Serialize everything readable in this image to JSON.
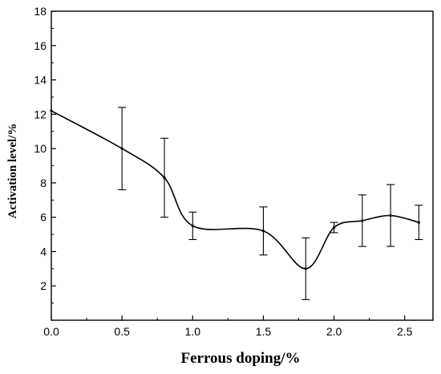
{
  "chart_data": {
    "type": "line",
    "title": "",
    "xlabel": "Ferrous doping/%",
    "ylabel": "Activation level/%",
    "xlim": [
      0,
      2.7
    ],
    "ylim": [
      0,
      18
    ],
    "x_ticks": [
      "0.0",
      "0.5",
      "1.0",
      "1.5",
      "2.0",
      "2.5"
    ],
    "y_ticks": [
      "2",
      "4",
      "6",
      "8",
      "10",
      "12",
      "14",
      "16",
      "18"
    ],
    "grid": false,
    "legend": "none",
    "line_color": "#000000",
    "series": [
      {
        "x": [
          0.0,
          0.5,
          0.8,
          1.0,
          1.5,
          1.8,
          2.0,
          2.2,
          2.4,
          2.6
        ],
        "y": [
          12.2,
          10.0,
          8.3,
          5.5,
          5.2,
          3.0,
          5.4,
          5.8,
          6.1,
          5.7
        ],
        "err": [
          0.0,
          2.4,
          2.3,
          0.8,
          1.4,
          1.8,
          0.3,
          1.5,
          1.8,
          1.0
        ]
      }
    ]
  }
}
